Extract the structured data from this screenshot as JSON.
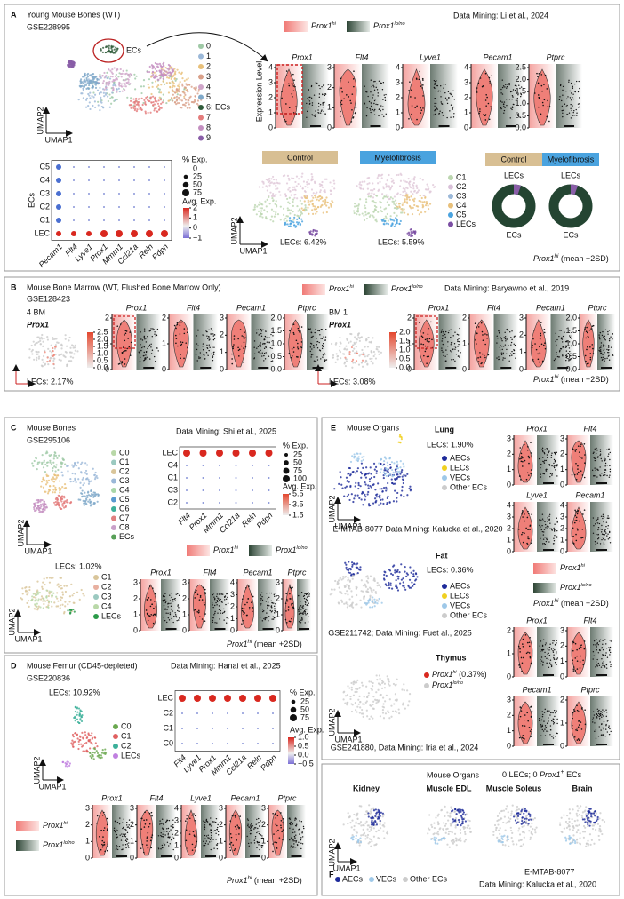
{
  "A": {
    "letter": "A",
    "title": "Young Mouse Bones (WT)",
    "accession": "GSE228995",
    "source": "Data Mining: Li et al., 2024",
    "ecs": "ECs",
    "clusters": [
      "0",
      "1",
      "2",
      "3",
      "4",
      "5",
      "6: ECs",
      "7",
      "8",
      "9"
    ],
    "umap_y": "UMAP2",
    "umap_x": "UMAP1",
    "legend": [
      {
        "gene": "Prox1",
        "sup": "hi"
      },
      {
        "gene": "Prox1",
        "sup": "lo/no"
      }
    ],
    "ylabel": "Expression Level",
    "violins": [
      {
        "gene": "Prox1",
        "ticks": [
          0,
          1,
          2,
          3,
          4
        ]
      },
      {
        "gene": "Flt4",
        "ticks": [
          0,
          1,
          2,
          3
        ]
      },
      {
        "gene": "Lyve1",
        "ticks": [
          0,
          1,
          2,
          3,
          4
        ]
      },
      {
        "gene": "Pecam1",
        "ticks": [
          0,
          1,
          2,
          3,
          4
        ]
      },
      {
        "gene": "Ptprc",
        "ticks": [
          {
            "value": 0,
            "label": "0.0"
          },
          0.5,
          {
            "value": 1,
            "label": "1.0"
          },
          1.5,
          {
            "value": 2,
            "label": "2.0"
          },
          2.5
        ]
      }
    ],
    "dotplot": {
      "ylabel": "ECs",
      "rows": [
        "C5",
        "C4",
        "C3",
        "C2",
        "C1",
        "LEC"
      ],
      "cols": [
        "Pecam1",
        "Flt4",
        "Lyve1",
        "Prox1",
        "Mmrn1",
        "Ccl21a",
        "Reln",
        "Pdpn"
      ],
      "size_title": "% Exp.",
      "sizes": [
        0,
        25,
        50,
        75
      ],
      "color_title": "Avg. Exp.",
      "color_ticks": [
        {
          "value": -1,
          "label": "−1"
        },
        0,
        1,
        2
      ]
    },
    "umaps": [
      {
        "condition": "Control",
        "lec_pct": "LECs: 6.42%"
      },
      {
        "condition": "Myelofibrosis",
        "lec_pct": "LECs: 5.59%"
      }
    ],
    "subclusters": [
      "C1",
      "C2",
      "C3",
      "C4",
      "C5",
      "LECs"
    ],
    "donuts": [
      {
        "condition": "Control",
        "top": "LECs",
        "bottom": "ECs"
      },
      {
        "condition": "Myelofibrosis",
        "top": "LECs",
        "bottom": "ECs"
      }
    ],
    "footnote": {
      "gene": "Prox1",
      "sup": "hi",
      "post": " (mean +2SD)"
    }
  },
  "B": {
    "letter": "B",
    "title": "Mouse Bone Marrow (WT, Flushed Bone Marrow Only)",
    "accession": "GSE128423",
    "source": "Data Mining: Baryawno et al., 2019",
    "legend": [
      {
        "gene": "Prox1",
        "sup": "hi"
      },
      {
        "gene": "Prox1",
        "sup": "lo/no"
      }
    ],
    "samples": [
      {
        "name": "4 BM",
        "gene": "Prox1",
        "color_ticks": [
          {
            "value": 0,
            "label": "0.0"
          },
          0.5,
          {
            "value": 1,
            "label": "1.0"
          },
          1.5,
          {
            "value": 2,
            "label": "2.0"
          },
          2.5
        ],
        "lec_pct": "LECs: 2.17%",
        "violins": [
          {
            "gene": "Prox1",
            "ticks": [
              0,
              1,
              2
            ]
          },
          {
            "gene": "Flt4",
            "ticks": [
              0,
              1,
              2
            ]
          },
          {
            "gene": "Pecam1",
            "ticks": [
              0,
              1,
              2,
              3
            ]
          },
          {
            "gene": "Ptprc",
            "ticks": [
              {
                "value": 0,
                "label": "0.0"
              },
              0.5,
              {
                "value": 1,
                "label": "1.0"
              },
              1.5,
              {
                "value": 2,
                "label": "2.0"
              }
            ]
          }
        ]
      },
      {
        "name": "BM 1",
        "gene": "Prox1",
        "color_ticks": [
          {
            "value": 0,
            "label": "0.0"
          },
          0.5,
          {
            "value": 1,
            "label": "1.0"
          },
          1.5,
          {
            "value": 2,
            "label": "2.0"
          }
        ],
        "lec_pct": "LECs: 3.08%",
        "violins": [
          {
            "gene": "Prox1",
            "ticks": [
              0,
              1,
              2
            ]
          },
          {
            "gene": "Flt4",
            "ticks": [
              0,
              1,
              2
            ]
          },
          {
            "gene": "Pecam1",
            "ticks": [
              0,
              1,
              2,
              3
            ]
          },
          {
            "gene": "Ptprc",
            "ticks": [
              {
                "value": 0,
                "label": "0.0"
              },
              0.5,
              {
                "value": 1,
                "label": "1.0"
              },
              1.5,
              {
                "value": 2,
                "label": "2.0"
              }
            ]
          }
        ]
      }
    ],
    "footnote": {
      "gene": "Prox1",
      "sup": "hi",
      "post": " (mean +2SD)"
    }
  },
  "C": {
    "letter": "C",
    "title": "Mouse Bones",
    "accession": "GSE295106",
    "source": "Data Mining: Shi et al., 2025",
    "clusters": [
      "C0",
      "C1",
      "C2",
      "C3",
      "C4",
      "C5",
      "C6",
      "C7",
      "C8",
      "ECs"
    ],
    "umap_y": "UMAP2",
    "umap_x": "UMAP1",
    "dotplot": {
      "rows": [
        "LEC",
        "C4",
        "C1",
        "C3",
        "C2"
      ],
      "cols": [
        "Flt4",
        "Prox1",
        "Mmrn1",
        "Ccl21a",
        "Reln",
        "Pdpn"
      ],
      "size_title": "% Exp.",
      "sizes": [
        25,
        50,
        75,
        100
      ],
      "color_title": "Avg. Exp.",
      "color_ticks": [
        1.5,
        3.5,
        5.5
      ]
    },
    "legend": [
      {
        "gene": "Prox1",
        "sup": "hi"
      },
      {
        "gene": "Prox1",
        "sup": "lo/no"
      }
    ],
    "lec_pct": "LECs: 1.02%",
    "subclusters": [
      "C1",
      "C2",
      "C3",
      "C4",
      "LECs"
    ],
    "violins": [
      {
        "gene": "Prox1",
        "ticks": [
          0,
          1,
          2,
          3
        ]
      },
      {
        "gene": "Flt4",
        "ticks": [
          0,
          1,
          2,
          3
        ]
      },
      {
        "gene": "Pecam1",
        "ticks": [
          0,
          1,
          2,
          3,
          4
        ]
      },
      {
        "gene": "Ptprc",
        "ticks": [
          0,
          1,
          2,
          3
        ]
      }
    ],
    "footnote": {
      "gene": "Prox1",
      "sup": "hi",
      "post": " (mean +2SD)"
    }
  },
  "D": {
    "letter": "D",
    "title": "Mouse Femur (CD45-depleted)",
    "accession": "GSE220836",
    "source": "Data Mining: Hanai et al., 2025",
    "lec_pct": "LECs: 10.92%",
    "clusters": [
      "C0",
      "C1",
      "C2",
      "LECs"
    ],
    "umap_y": "UMAP2",
    "umap_x": "UMAP1",
    "dotplot": {
      "rows": [
        "LEC",
        "C2",
        "C1",
        "C0"
      ],
      "cols": [
        "Flt4",
        "Lyve1",
        "Prox1",
        "Mmrn1",
        "Ccl21a",
        "Reln",
        "Pdpn"
      ],
      "size_title": "% Exp.",
      "sizes": [
        25,
        50,
        75
      ],
      "color_title": "Avg. Exp.",
      "color_ticks": [
        {
          "value": -0.5,
          "label": "−0.5"
        },
        {
          "value": 0,
          "label": "0.0"
        },
        0.5,
        {
          "value": 1,
          "label": "1.0"
        }
      ]
    },
    "legend": [
      {
        "gene": "Prox1",
        "sup": "hi"
      },
      {
        "gene": "Prox1",
        "sup": "lo/no"
      }
    ],
    "violins": [
      {
        "gene": "Prox1",
        "ticks": [
          0,
          1,
          2,
          3
        ]
      },
      {
        "gene": "Flt4",
        "ticks": [
          0,
          1,
          2,
          3
        ]
      },
      {
        "gene": "Lyve1",
        "ticks": [
          0,
          1,
          2,
          3,
          4
        ]
      },
      {
        "gene": "Pecam1",
        "ticks": [
          0,
          1,
          2,
          3
        ]
      },
      {
        "gene": "Ptprc",
        "ticks": [
          0,
          1,
          2,
          3
        ]
      }
    ],
    "footnote": {
      "gene": "Prox1",
      "sup": "hi",
      "post": " (mean +2SD)"
    }
  },
  "E": {
    "letter": "E",
    "title": "Mouse Organs",
    "umap_y": "UMAP2",
    "umap_x": "UMAP1",
    "lung": {
      "name": "Lung",
      "lec_pct": "LECs: 1.90%",
      "legend": [
        "AECs",
        "LECs",
        "VECs",
        "Other ECs"
      ],
      "accession": "E-MTAB-8077 Data Mining: Kalucka et al., 2020",
      "violins": [
        {
          "gene": "Prox1",
          "ticks": [
            0,
            1,
            2,
            3
          ]
        },
        {
          "gene": "Flt4",
          "ticks": [
            0,
            1,
            2,
            3
          ]
        },
        {
          "gene": "Lyve1",
          "ticks": [
            0,
            1,
            2,
            3,
            4
          ]
        },
        {
          "gene": "Pecam1",
          "ticks": [
            0,
            1,
            2,
            3,
            4
          ]
        }
      ]
    },
    "fat": {
      "name": "Fat",
      "lec_pct": "LECs: 0.36%",
      "legend": [
        "AECs",
        "LECs",
        "VECs",
        "Other ECs"
      ],
      "accession": "GSE211742; Data Mining: Fuet al., 2025"
    },
    "legend": [
      {
        "gene": "Prox1",
        "sup": "hi"
      },
      {
        "gene": "Prox1",
        "sup": "lo/no"
      }
    ],
    "footnote": {
      "gene": "Prox1",
      "sup": "hi",
      "post": " (mean +2SD)"
    },
    "thymus": {
      "name": "Thymus",
      "legend": [
        {
          "gene": "Prox1",
          "sup": "hi",
          "post": " (0.37%)"
        },
        {
          "gene": "Prox1",
          "sup": "lo/no"
        }
      ],
      "accession": "GSE241880, Data Mining: Iria et al., 2024",
      "violins": [
        {
          "gene": "Prox1",
          "ticks": [
            0,
            1,
            2
          ]
        },
        {
          "gene": "Flt4",
          "ticks": [
            0,
            1,
            2,
            3
          ]
        },
        {
          "gene": "Pecam1",
          "ticks": [
            0,
            1,
            2,
            3
          ]
        },
        {
          "gene": "Ptprc",
          "ticks": [
            0,
            1,
            2
          ]
        }
      ]
    }
  },
  "F": {
    "letter": "F",
    "title": "Mouse Organs",
    "subtitle": {
      "pre": "0 LECs; 0 ",
      "gene": "Prox1",
      "sup": "+",
      "post": " ECs"
    },
    "tissues": [
      "Kidney",
      "Muscle EDL",
      "Muscle Soleus",
      "Brain"
    ],
    "umap_y": "UMAP2",
    "umap_x": "UMAP1",
    "legend": [
      "AECs",
      "VECs",
      "Other ECs"
    ],
    "accession": "E-MTAB-8077",
    "source": "Data Mining: Kalucka et al., 2020"
  }
}
